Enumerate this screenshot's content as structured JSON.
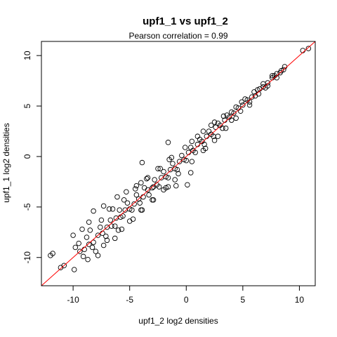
{
  "chart_data": {
    "type": "scatter",
    "title": "upf1_1 vs upf1_2",
    "subtitle": "Pearson correlation =  0.99",
    "xlabel": "upf1_2 log2 densities",
    "ylabel": "upf1_1 log2 densities",
    "xlim": [
      -12.8,
      11.4
    ],
    "ylim": [
      -12.8,
      11.4
    ],
    "x_ticks": [
      -10,
      -5,
      0,
      5,
      10
    ],
    "y_ticks": [
      -10,
      -5,
      0,
      5,
      10
    ],
    "tick_labels_x": [
      "-10",
      "-5",
      "0",
      "5",
      "10"
    ],
    "tick_labels_y": [
      "-10",
      "-5",
      "0",
      "5",
      "10"
    ],
    "grid": false,
    "marker": "open-circle",
    "reference_line": {
      "slope": 1,
      "intercept": 0,
      "color": "#ff0000"
    },
    "colors": {
      "points": "#000000",
      "line": "#ff0000",
      "axes": "#000000"
    },
    "points": [
      {
        "x": 10.8,
        "y": 10.7
      },
      {
        "x": 10.3,
        "y": 10.5
      },
      {
        "x": 8.4,
        "y": 8.5
      },
      {
        "x": 8.0,
        "y": 8.2
      },
      {
        "x": 7.6,
        "y": 7.8
      },
      {
        "x": 7.2,
        "y": 7.3
      },
      {
        "x": 6.8,
        "y": 6.9
      },
      {
        "x": 6.5,
        "y": 6.7
      },
      {
        "x": 6.1,
        "y": 6.0
      },
      {
        "x": 5.8,
        "y": 5.9
      },
      {
        "x": 5.4,
        "y": 5.6
      },
      {
        "x": 5.0,
        "y": 5.1
      },
      {
        "x": 4.6,
        "y": 4.8
      },
      {
        "x": 4.2,
        "y": 4.3
      },
      {
        "x": 3.8,
        "y": 3.9
      },
      {
        "x": 4.0,
        "y": 3.6
      },
      {
        "x": 3.4,
        "y": 3.6
      },
      {
        "x": 3.0,
        "y": 3.1
      },
      {
        "x": 2.6,
        "y": 2.9
      },
      {
        "x": 2.2,
        "y": 2.2
      },
      {
        "x": 1.8,
        "y": 2.0
      },
      {
        "x": 1.4,
        "y": 1.5
      },
      {
        "x": 1.0,
        "y": 1.2
      },
      {
        "x": 0.6,
        "y": 0.6
      },
      {
        "x": 0.2,
        "y": 0.4
      },
      {
        "x": -0.2,
        "y": -0.3
      },
      {
        "x": -0.6,
        "y": -0.5
      },
      {
        "x": -1.0,
        "y": -1.2
      },
      {
        "x": -1.4,
        "y": -1.3
      },
      {
        "x": -1.8,
        "y": -2.0
      },
      {
        "x": -2.2,
        "y": -2.1
      },
      {
        "x": -2.6,
        "y": -2.8
      },
      {
        "x": -3.0,
        "y": -3.1
      },
      {
        "x": -3.4,
        "y": -3.3
      },
      {
        "x": -3.8,
        "y": -4.0
      },
      {
        "x": -4.2,
        "y": -4.2
      },
      {
        "x": -4.6,
        "y": -4.7
      },
      {
        "x": -5.0,
        "y": -5.2
      },
      {
        "x": -5.4,
        "y": -5.3
      },
      {
        "x": -5.8,
        "y": -6.0
      },
      {
        "x": -6.2,
        "y": -6.1
      },
      {
        "x": -6.6,
        "y": -6.9
      },
      {
        "x": -7.0,
        "y": -7.0
      },
      {
        "x": -7.4,
        "y": -7.6
      },
      {
        "x": -7.8,
        "y": -7.8
      },
      {
        "x": -8.2,
        "y": -8.5
      },
      {
        "x": -8.6,
        "y": -8.7
      },
      {
        "x": -9.0,
        "y": -9.2
      },
      {
        "x": -9.4,
        "y": -9.4
      },
      {
        "x": -2.5,
        "y": -1.2
      },
      {
        "x": -3.5,
        "y": -2.2
      },
      {
        "x": -4.5,
        "y": -3.2
      },
      {
        "x": -5.5,
        "y": -4.3
      },
      {
        "x": -6.5,
        "y": -5.2
      },
      {
        "x": -7.5,
        "y": -6.3
      },
      {
        "x": -8.5,
        "y": -7.3
      },
      {
        "x": -1.5,
        "y": -0.3
      },
      {
        "x": -2.0,
        "y": -3.3
      },
      {
        "x": -3.0,
        "y": -4.3
      },
      {
        "x": -4.0,
        "y": -5.3
      },
      {
        "x": -5.0,
        "y": -6.4
      },
      {
        "x": -6.0,
        "y": -7.3
      },
      {
        "x": -7.0,
        "y": -8.3
      },
      {
        "x": -8.0,
        "y": -9.4
      },
      {
        "x": -1.0,
        "y": -2.3
      },
      {
        "x": 1.5,
        "y": 2.5
      },
      {
        "x": 2.5,
        "y": 3.4
      },
      {
        "x": 0.5,
        "y": 1.5
      },
      {
        "x": 1.5,
        "y": 0.6
      },
      {
        "x": 2.5,
        "y": 1.6
      },
      {
        "x": 3.5,
        "y": 2.8
      },
      {
        "x": -1.6,
        "y": 1.4
      },
      {
        "x": -3.9,
        "y": -0.6
      },
      {
        "x": -6.1,
        "y": -4.0
      },
      {
        "x": -4.0,
        "y": -2.6
      },
      {
        "x": -8.2,
        "y": -5.4
      },
      {
        "x": -7.3,
        "y": -4.9
      },
      {
        "x": -0.9,
        "y": -2.9
      },
      {
        "x": 0.4,
        "y": -1.6
      },
      {
        "x": -2.9,
        "y": -3.0
      },
      {
        "x": 0.1,
        "y": -2.8
      },
      {
        "x": -1.6,
        "y": -3.0
      },
      {
        "x": -10.0,
        "y": -7.8
      },
      {
        "x": -9.5,
        "y": -8.6
      },
      {
        "x": -10.8,
        "y": -10.8
      },
      {
        "x": -11.1,
        "y": -11.0
      },
      {
        "x": -11.8,
        "y": -9.6
      },
      {
        "x": -12.0,
        "y": -9.8
      },
      {
        "x": -9.9,
        "y": -11.2
      },
      {
        "x": -8.7,
        "y": -10.2
      },
      {
        "x": -9.2,
        "y": -7.2
      },
      {
        "x": -8.6,
        "y": -6.5
      },
      {
        "x": -7.8,
        "y": -9.8
      },
      {
        "x": -7.3,
        "y": -8.8
      },
      {
        "x": -6.8,
        "y": -5.2
      },
      {
        "x": -6.3,
        "y": -8.1
      },
      {
        "x": -5.7,
        "y": -7.2
      },
      {
        "x": -5.3,
        "y": -3.5
      },
      {
        "x": -4.7,
        "y": -6.2
      },
      {
        "x": -4.4,
        "y": -2.9
      },
      {
        "x": -3.9,
        "y": -5.3
      },
      {
        "x": -3.4,
        "y": -2.1
      },
      {
        "x": -2.9,
        "y": -4.3
      },
      {
        "x": -2.3,
        "y": -1.2
      },
      {
        "x": -1.8,
        "y": -3.1
      },
      {
        "x": -1.3,
        "y": -0.1
      },
      {
        "x": -0.7,
        "y": -1.7
      },
      {
        "x": -0.1,
        "y": 0.9
      },
      {
        "x": 0.5,
        "y": -0.5
      },
      {
        "x": 1.0,
        "y": 2.0
      },
      {
        "x": 1.7,
        "y": 0.8
      },
      {
        "x": 2.2,
        "y": 3.1
      },
      {
        "x": 2.8,
        "y": 2.0
      },
      {
        "x": 3.3,
        "y": 4.0
      },
      {
        "x": 4.4,
        "y": 3.8
      },
      {
        "x": 4.9,
        "y": 5.4
      },
      {
        "x": 5.6,
        "y": 5.1
      },
      {
        "x": 6.3,
        "y": 6.6
      },
      {
        "x": 7.0,
        "y": 6.8
      },
      {
        "x": 7.8,
        "y": 8.0
      },
      {
        "x": 8.7,
        "y": 8.9
      },
      {
        "x": -9.8,
        "y": -9.0
      },
      {
        "x": -9.1,
        "y": -9.9
      },
      {
        "x": -8.8,
        "y": -8.0
      },
      {
        "x": -8.3,
        "y": -9.0
      },
      {
        "x": -7.6,
        "y": -7.0
      },
      {
        "x": -7.1,
        "y": -7.9
      },
      {
        "x": -6.7,
        "y": -6.3
      },
      {
        "x": -6.3,
        "y": -6.9
      },
      {
        "x": -5.9,
        "y": -5.3
      },
      {
        "x": -5.6,
        "y": -5.9
      },
      {
        "x": -5.2,
        "y": -4.6
      },
      {
        "x": -4.8,
        "y": -5.3
      },
      {
        "x": -4.4,
        "y": -3.8
      },
      {
        "x": -4.1,
        "y": -4.6
      },
      {
        "x": -3.7,
        "y": -3.1
      },
      {
        "x": -3.3,
        "y": -3.8
      },
      {
        "x": -2.8,
        "y": -2.3
      },
      {
        "x": -2.4,
        "y": -3.0
      },
      {
        "x": -2.0,
        "y": -1.5
      },
      {
        "x": -1.6,
        "y": -2.1
      },
      {
        "x": -1.2,
        "y": -0.7
      },
      {
        "x": -0.8,
        "y": -1.3
      },
      {
        "x": -0.4,
        "y": 0.1
      },
      {
        "x": 0.0,
        "y": -0.4
      },
      {
        "x": 0.4,
        "y": 0.9
      },
      {
        "x": 0.8,
        "y": 0.4
      },
      {
        "x": 1.2,
        "y": 1.7
      },
      {
        "x": 1.6,
        "y": 1.2
      },
      {
        "x": 2.0,
        "y": 2.5
      },
      {
        "x": 2.4,
        "y": 2.0
      },
      {
        "x": 2.8,
        "y": 3.3
      },
      {
        "x": 3.2,
        "y": 2.8
      },
      {
        "x": 3.6,
        "y": 4.1
      },
      {
        "x": 4.0,
        "y": 4.4
      },
      {
        "x": 4.4,
        "y": 4.9
      },
      {
        "x": 4.8,
        "y": 4.5
      },
      {
        "x": 5.2,
        "y": 5.7
      },
      {
        "x": 5.6,
        "y": 5.4
      },
      {
        "x": 6.0,
        "y": 6.4
      },
      {
        "x": 6.4,
        "y": 6.2
      },
      {
        "x": 6.8,
        "y": 7.2
      },
      {
        "x": 7.2,
        "y": 7.0
      },
      {
        "x": 7.6,
        "y": 8.0
      },
      {
        "x": 8.0,
        "y": 7.8
      },
      {
        "x": 8.3,
        "y": 8.3
      },
      {
        "x": 8.6,
        "y": 8.6
      }
    ]
  }
}
